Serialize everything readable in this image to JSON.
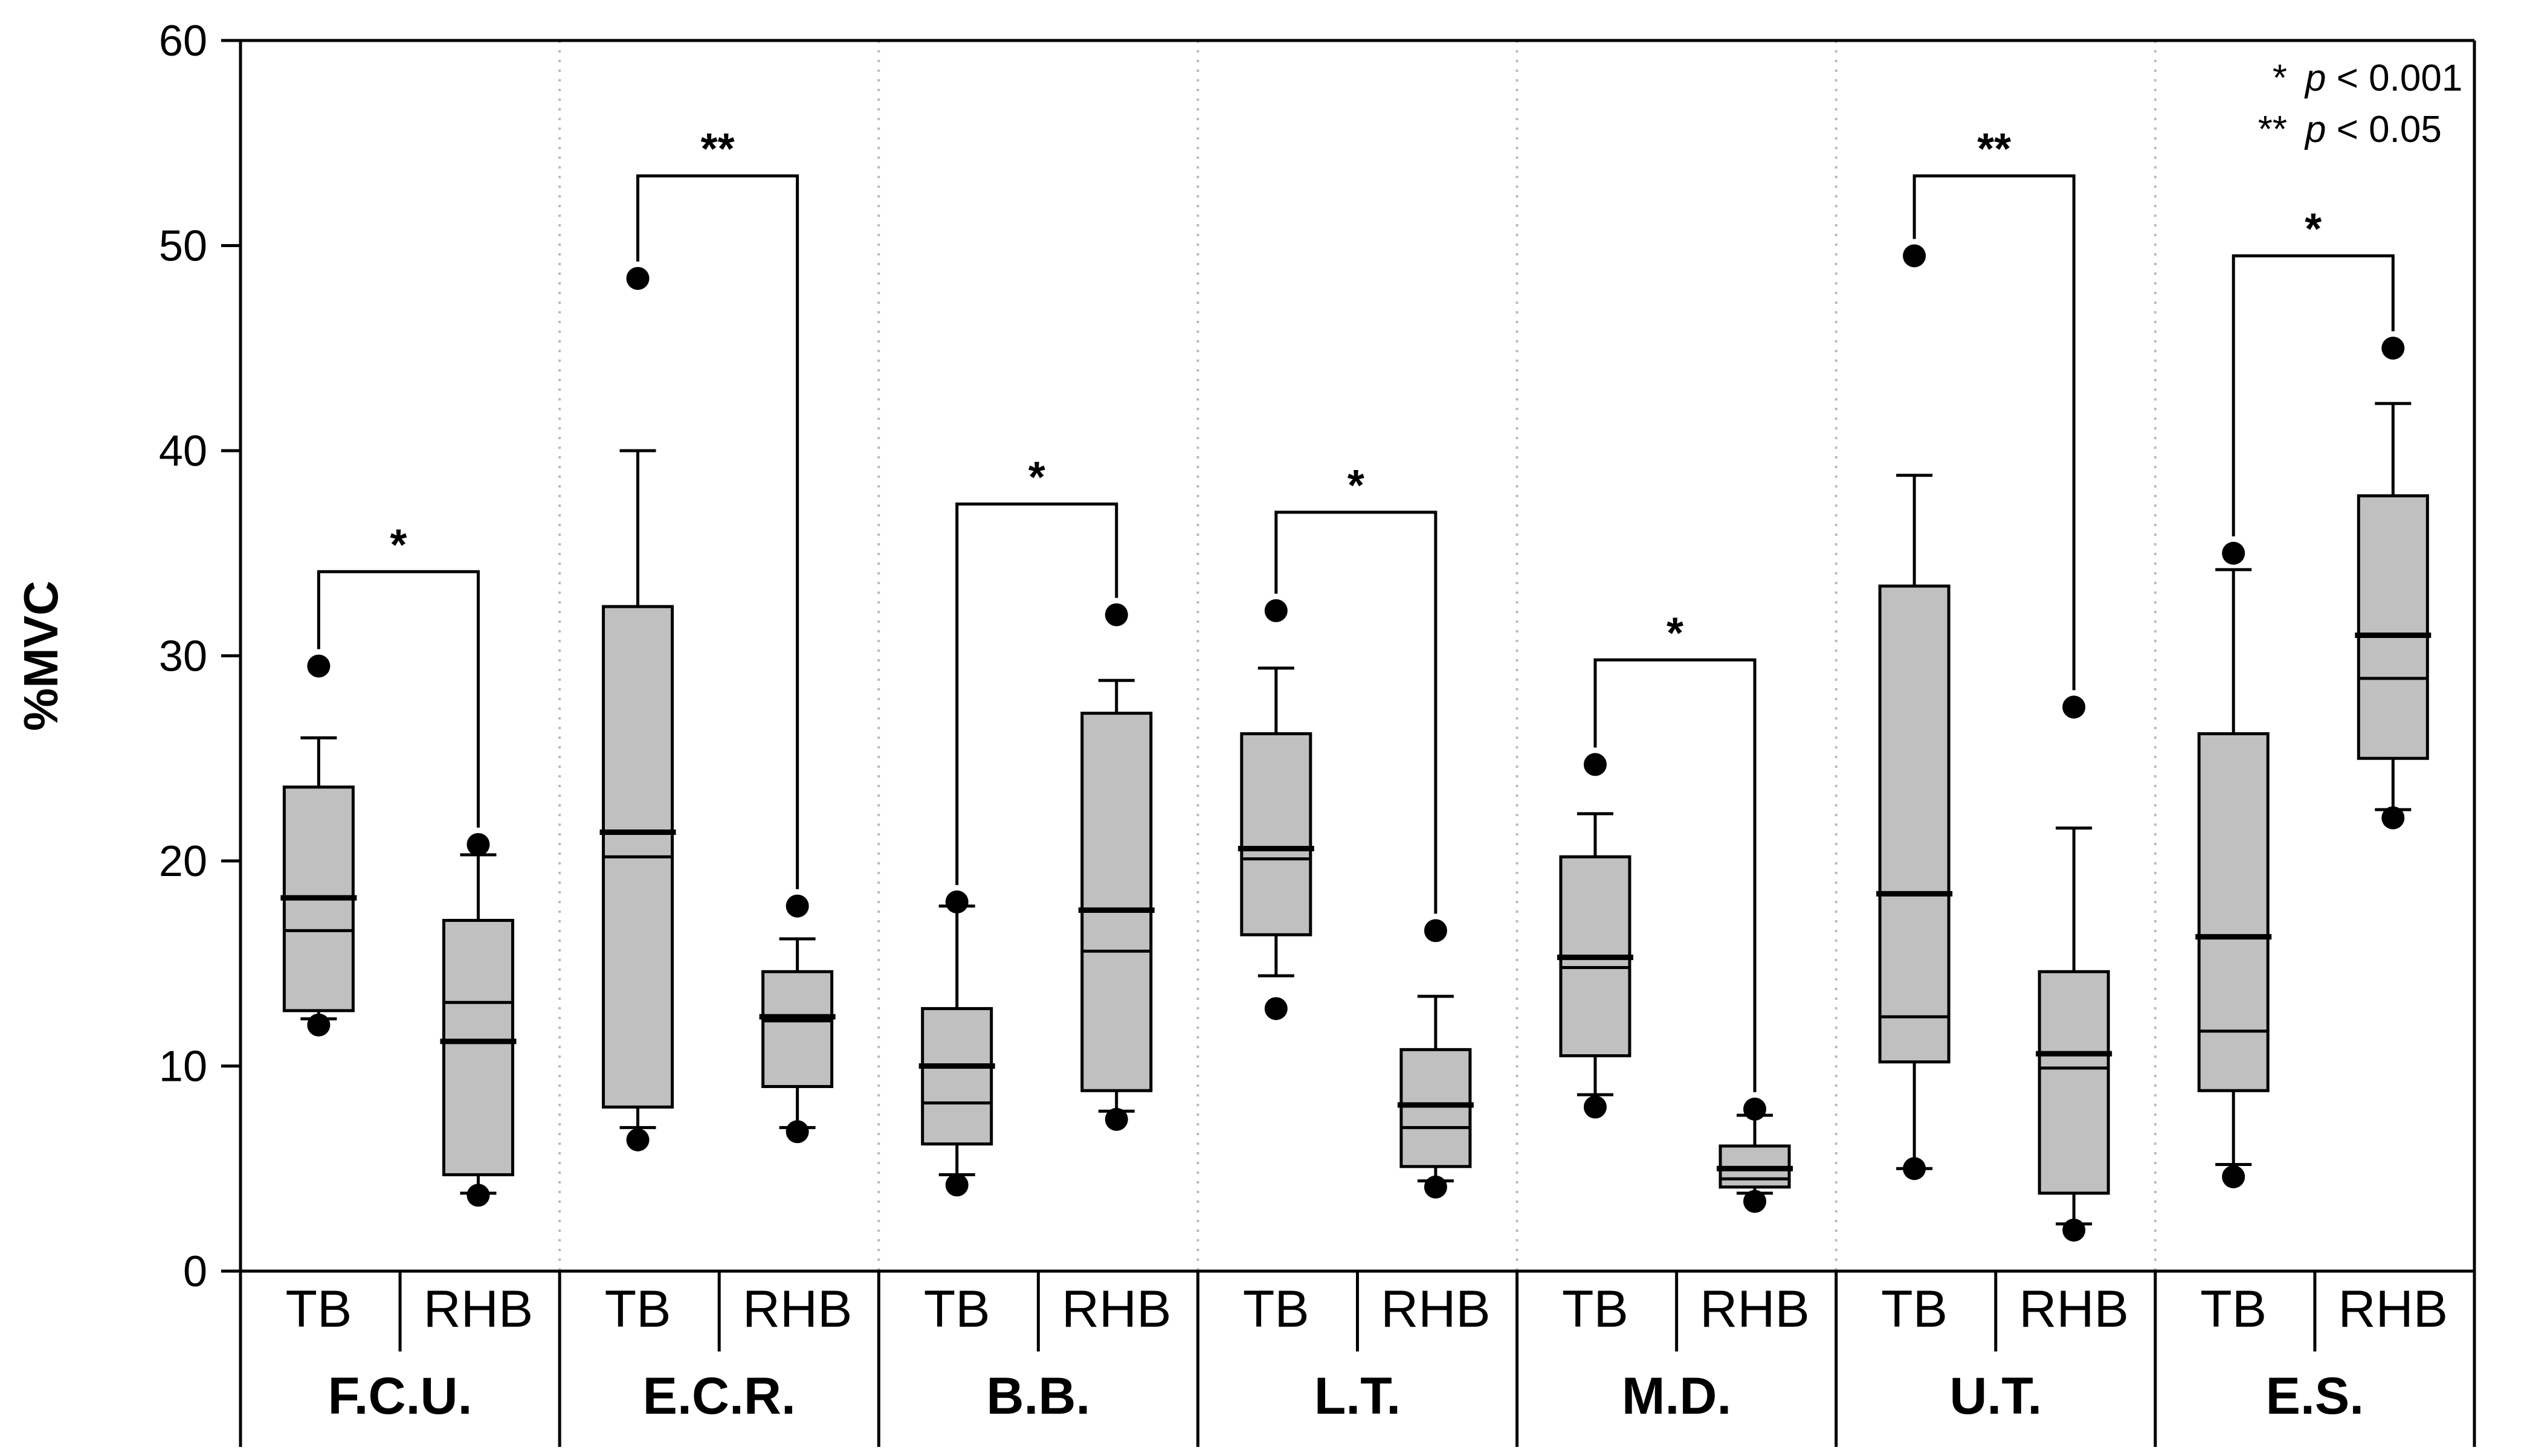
{
  "chart_data": {
    "type": "box",
    "ylabel": "%MVC",
    "ylim": [
      0,
      60
    ],
    "yticks": [
      "0",
      "10",
      "20",
      "30",
      "40",
      "50",
      "60"
    ],
    "conditions": [
      "TB",
      "RHB"
    ],
    "grid": false,
    "legend_position": "top-right",
    "colors": {
      "box_fill": "#c0c0c0",
      "stroke": "#000000",
      "separator": "#bbbbbb"
    },
    "legend": [
      {
        "symbol": "*",
        "text": "p < 0.001"
      },
      {
        "symbol": "**",
        "text": "p < 0.05"
      }
    ],
    "groups": [
      {
        "name": "F.C.U.",
        "sig": "*",
        "bracket_y": 34.1,
        "boxes": [
          {
            "label": "TB",
            "whisker_low": 12.3,
            "q1": 12.7,
            "median": 16.6,
            "mean": 18.2,
            "q3": 23.6,
            "whisker_high": 26.0,
            "outliers": [
              12.0,
              29.5
            ]
          },
          {
            "label": "RHB",
            "whisker_low": 3.8,
            "q1": 4.7,
            "median": 13.1,
            "mean": 11.2,
            "q3": 17.1,
            "whisker_high": 20.3,
            "outliers": [
              3.7,
              20.8
            ]
          }
        ]
      },
      {
        "name": "E.C.R.",
        "sig": "**",
        "bracket_y": 53.4,
        "boxes": [
          {
            "label": "TB",
            "whisker_low": 7.0,
            "q1": 8.0,
            "median": 20.2,
            "mean": 21.4,
            "q3": 32.4,
            "whisker_high": 40.0,
            "outliers": [
              6.4,
              48.4
            ]
          },
          {
            "label": "RHB",
            "whisker_low": 7.0,
            "q1": 9.0,
            "median": 12.2,
            "mean": 12.4,
            "q3": 14.6,
            "whisker_high": 16.2,
            "outliers": [
              6.8,
              17.8
            ]
          }
        ]
      },
      {
        "name": "B.B.",
        "sig": "*",
        "bracket_y": 37.4,
        "boxes": [
          {
            "label": "TB",
            "whisker_low": 4.7,
            "q1": 6.2,
            "median": 8.2,
            "mean": 10.0,
            "q3": 12.8,
            "whisker_high": 17.8,
            "outliers": [
              4.2,
              18.0
            ]
          },
          {
            "label": "RHB",
            "whisker_low": 7.8,
            "q1": 8.8,
            "median": 15.6,
            "mean": 17.6,
            "q3": 27.2,
            "whisker_high": 28.8,
            "outliers": [
              7.4,
              32.0
            ]
          }
        ]
      },
      {
        "name": "L.T.",
        "sig": "*",
        "bracket_y": 37.0,
        "boxes": [
          {
            "label": "TB",
            "whisker_low": 14.4,
            "q1": 16.4,
            "median": 20.1,
            "mean": 20.6,
            "q3": 26.2,
            "whisker_high": 29.4,
            "outliers": [
              12.8,
              32.2
            ]
          },
          {
            "label": "RHB",
            "whisker_low": 4.4,
            "q1": 5.1,
            "median": 7.0,
            "mean": 8.1,
            "q3": 10.8,
            "whisker_high": 13.4,
            "outliers": [
              4.1,
              16.6
            ]
          }
        ]
      },
      {
        "name": "M.D.",
        "sig": "*",
        "bracket_y": 29.8,
        "boxes": [
          {
            "label": "TB",
            "whisker_low": 8.6,
            "q1": 10.5,
            "median": 14.8,
            "mean": 15.3,
            "q3": 20.2,
            "whisker_high": 22.3,
            "outliers": [
              8.0,
              24.7
            ]
          },
          {
            "label": "RHB",
            "whisker_low": 3.8,
            "q1": 4.1,
            "median": 4.5,
            "mean": 5.0,
            "q3": 6.1,
            "whisker_high": 7.6,
            "outliers": [
              3.4,
              7.9
            ]
          }
        ]
      },
      {
        "name": "U.T.",
        "sig": "**",
        "bracket_y": 53.4,
        "boxes": [
          {
            "label": "TB",
            "whisker_low": 5.0,
            "q1": 10.2,
            "median": 12.4,
            "mean": 18.4,
            "q3": 33.4,
            "whisker_high": 38.8,
            "outliers": [
              5.0,
              49.5
            ]
          },
          {
            "label": "RHB",
            "whisker_low": 2.3,
            "q1": 3.8,
            "median": 9.9,
            "mean": 10.6,
            "q3": 14.6,
            "whisker_high": 21.6,
            "outliers": [
              2.0,
              27.5
            ]
          }
        ]
      },
      {
        "name": "E.S.",
        "sig": "*",
        "bracket_y": 49.5,
        "boxes": [
          {
            "label": "TB",
            "whisker_low": 5.2,
            "q1": 8.8,
            "median": 11.7,
            "mean": 16.3,
            "q3": 26.2,
            "whisker_high": 34.2,
            "outliers": [
              4.6,
              35.0
            ]
          },
          {
            "label": "RHB",
            "whisker_low": 22.5,
            "q1": 25.0,
            "median": 28.9,
            "mean": 31.0,
            "q3": 37.8,
            "whisker_high": 42.3,
            "outliers": [
              22.1,
              45.0
            ]
          }
        ]
      }
    ]
  }
}
